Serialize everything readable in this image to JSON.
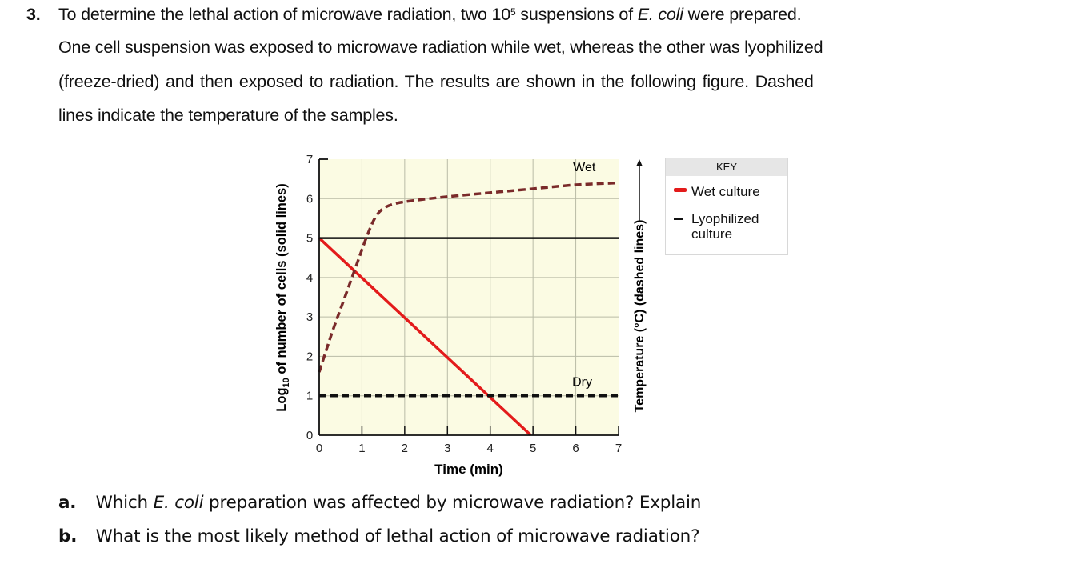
{
  "question": {
    "number": "3.",
    "line1_pre": "To determine the lethal action of microwave radiation, two 10",
    "line1_sup": "5",
    "line1_mid": " suspensions of ",
    "line1_italic": "E. coli",
    "line1_post": " were prepared.",
    "line2": "One cell suspension was exposed to microwave radiation while wet, whereas the other was lyophilized",
    "line3": "(freeze-dried) and then exposed to radiation. The results are shown in the following figure. Dashed",
    "line4": "lines indicate the temperature of the samples."
  },
  "subquestions": [
    {
      "label": "a.",
      "pre": " Which ",
      "italic": "E. coli",
      "post": " preparation was affected by microwave radiation? Explain"
    },
    {
      "label": "b.",
      "text": " What is the most likely method of lethal action of microwave radiation?"
    }
  ],
  "chart_data": {
    "type": "line",
    "xlabel": "Time (min)",
    "ylabel_left": "Log10 of number of cells (solid lines)",
    "ylabel_left_parts": {
      "pre": "Log",
      "sub": "10",
      "post": " of number of cells (solid lines)"
    },
    "ylabel_right": "Temperature (°C) (dashed lines)",
    "xlim": [
      0,
      7
    ],
    "ylim": [
      0,
      7
    ],
    "x_ticks": [
      "0",
      "1",
      "2",
      "3",
      "4",
      "5",
      "6",
      "7"
    ],
    "y_ticks": [
      "0",
      "1",
      "2",
      "3",
      "4",
      "5",
      "6",
      "7"
    ],
    "grid": true,
    "background": "#fbfbe3",
    "series": [
      {
        "name": "Wet culture",
        "style": "solid",
        "color": "#e31b1b",
        "x": [
          0,
          4.95
        ],
        "y": [
          5,
          0
        ]
      },
      {
        "name": "Lyophilized culture",
        "style": "solid",
        "color": "#111111",
        "x": [
          0,
          7
        ],
        "y": [
          5,
          5
        ]
      },
      {
        "name": "Wet",
        "style": "dashed",
        "color": "#7a2a2a",
        "label": "Wet",
        "x": [
          0,
          0.3,
          0.6,
          0.9,
          1.1,
          1.3,
          1.5,
          1.8,
          2.2,
          3,
          4,
          5,
          6,
          7
        ],
        "y": [
          1.6,
          2.6,
          3.5,
          4.4,
          5.0,
          5.5,
          5.75,
          5.88,
          5.95,
          6.05,
          6.15,
          6.25,
          6.35,
          6.4
        ]
      },
      {
        "name": "Dry",
        "style": "dashed",
        "color": "#111111",
        "label": "Dry",
        "x": [
          0,
          7
        ],
        "y": [
          1,
          1
        ]
      }
    ],
    "legend": {
      "title": "KEY",
      "position": "right",
      "items": [
        {
          "label": "Wet culture",
          "color": "#e31b1b"
        },
        {
          "label": "Lyophilized culture",
          "color": "#111111"
        }
      ]
    }
  }
}
